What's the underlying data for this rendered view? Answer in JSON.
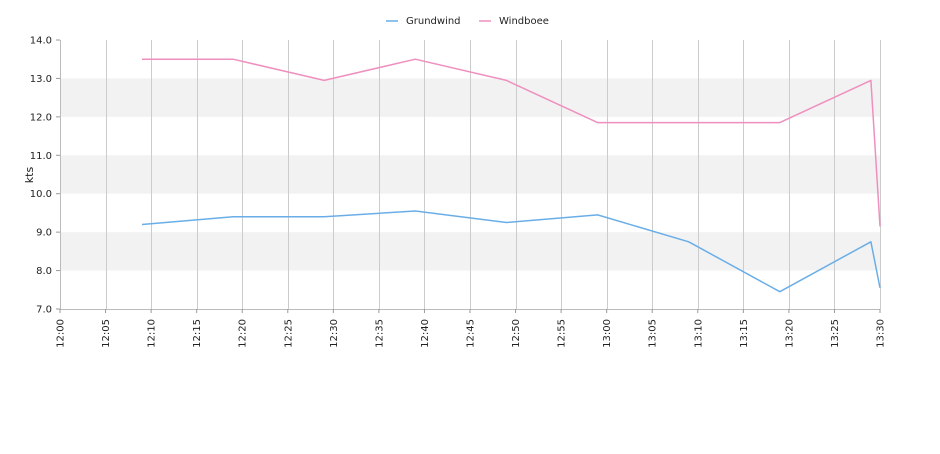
{
  "chart_data": {
    "type": "line",
    "title": "",
    "xlabel": "",
    "ylabel": "kts",
    "ylim": [
      7.0,
      14.0
    ],
    "y_ticks": [
      "7.0",
      "8.0",
      "9.0",
      "10.0",
      "11.0",
      "12.0",
      "13.0",
      "14.0"
    ],
    "xlim": [
      "12:00",
      "13:30"
    ],
    "x_ticks": [
      "12:00",
      "12:05",
      "12:10",
      "12:15",
      "12:20",
      "12:25",
      "12:30",
      "12:35",
      "12:40",
      "12:45",
      "12:50",
      "12:55",
      "13:00",
      "13:05",
      "13:10",
      "13:15",
      "13:20",
      "13:25",
      "13:30"
    ],
    "grid": "vertical lines and alternating horizontal bands",
    "legend_position": "top-center",
    "series": [
      {
        "name": "Grundwind",
        "color": "#6aaee8",
        "x": [
          "12:09",
          "12:19",
          "12:29",
          "12:39",
          "12:49",
          "12:59",
          "13:09",
          "13:19",
          "13:29",
          "13:30"
        ],
        "values": [
          9.2,
          9.4,
          9.4,
          9.55,
          9.25,
          9.45,
          8.75,
          7.45,
          8.75,
          7.55
        ]
      },
      {
        "name": "Windboee",
        "color": "#ef8fbf",
        "x": [
          "12:09",
          "12:19",
          "12:29",
          "12:39",
          "12:49",
          "12:59",
          "13:09",
          "13:19",
          "13:29",
          "13:30"
        ],
        "values": [
          13.5,
          13.5,
          12.95,
          13.5,
          12.95,
          11.85,
          11.85,
          11.85,
          12.95,
          9.15
        ]
      }
    ],
    "band_color": "#f2f2f2",
    "grid_color": "#cccccc"
  }
}
